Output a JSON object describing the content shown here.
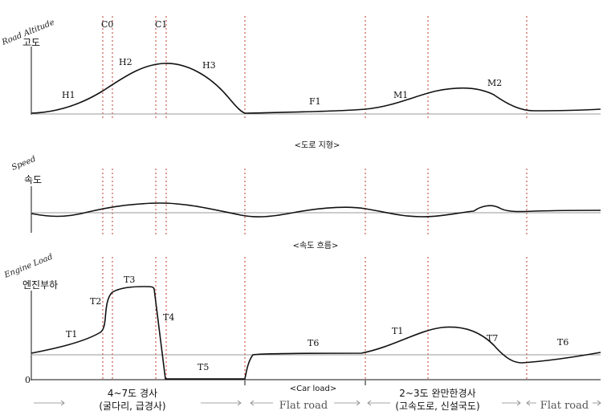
{
  "panels": {
    "altitude": {
      "rotated_label": "Road Altitude",
      "title": "고도",
      "caption": "<도로 지형>",
      "markers": [
        "C0",
        "C1"
      ],
      "segments": [
        "H1",
        "H2",
        "H3",
        "F1",
        "M1",
        "M2"
      ]
    },
    "speed": {
      "rotated_label": "Speed",
      "title": "속도",
      "caption": "<속도 흐름>"
    },
    "load": {
      "rotated_label": "Engine Load",
      "title": "엔진부하",
      "zero_label": "0",
      "caption": "<Car load>",
      "segments": [
        "T1",
        "T2",
        "T3",
        "T4",
        "T5",
        "T6",
        "T1",
        "T7",
        "T6"
      ]
    }
  },
  "bottom": {
    "slope1_line1": "4~7도 경사",
    "slope1_line2": "(굴다리, 급경사)",
    "flat1": "Flat road",
    "slope2_line1": "2~3도 완만한경사",
    "slope2_line2": "(고속도로, 신설국도)",
    "flat2": "Flat road"
  },
  "colors": {
    "curve": "#111111",
    "baseline": "#9a9a9a",
    "marker": "#c0392b",
    "axis": "#111111"
  }
}
